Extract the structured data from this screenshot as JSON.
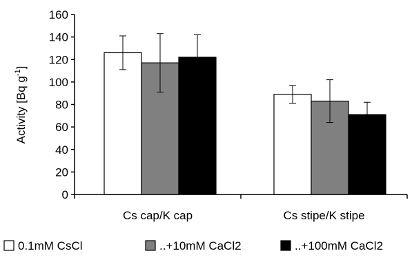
{
  "chart_data": {
    "type": "bar",
    "title": "",
    "xlabel": "",
    "ylabel_main": "Activity [Bq g",
    "ylabel_sup": "-1",
    "ylabel_tail": "]",
    "ylim": [
      0,
      160
    ],
    "yticks": [
      0,
      20,
      40,
      60,
      80,
      100,
      120,
      140,
      160
    ],
    "grid": false,
    "legend_position": "bottom",
    "categories": [
      "Cs cap/K cap",
      "Cs stipe/K stipe"
    ],
    "series": [
      {
        "name": "0.1mM CsCl",
        "color": "#ffffff",
        "values": [
          126,
          89
        ],
        "errors": [
          15,
          8
        ]
      },
      {
        "name": "..+10mM CaCl2",
        "color": "#808080",
        "values": [
          117,
          83
        ],
        "errors": [
          26,
          19
        ]
      },
      {
        "name": "..+100mM CaCl2",
        "color": "#000000",
        "values": [
          122,
          71
        ],
        "errors": [
          20,
          11
        ]
      }
    ]
  }
}
